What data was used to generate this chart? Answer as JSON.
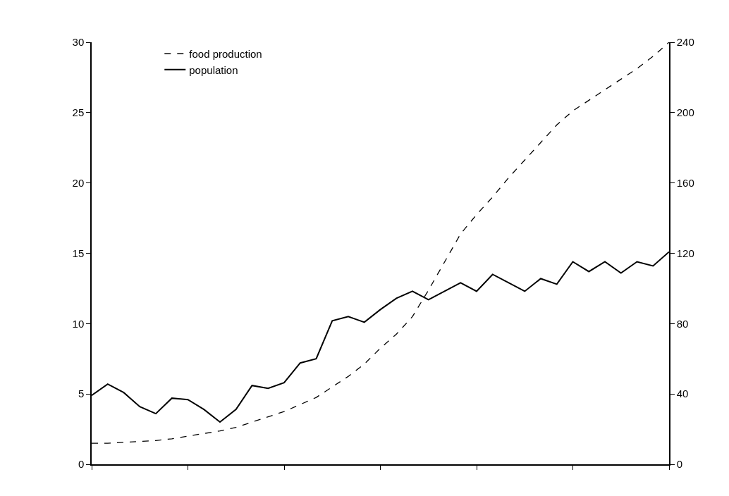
{
  "chart_data": {
    "type": "line",
    "categories": [
      null,
      null,
      null,
      null,
      null,
      null,
      null,
      null,
      null,
      null,
      null,
      null,
      null,
      null,
      null,
      null,
      null,
      null,
      null,
      null,
      null,
      null,
      null,
      null,
      null,
      null,
      null,
      null,
      null,
      null,
      null,
      null,
      null,
      null,
      null,
      null,
      null
    ],
    "ylim": [
      0,
      30
    ],
    "yticks": [
      0,
      5,
      10,
      15,
      20,
      25,
      30
    ],
    "y2lim": [
      0,
      240
    ],
    "y2ticks": [
      0,
      40,
      80,
      120,
      160,
      200,
      240
    ],
    "legend": "top",
    "series": [
      {
        "name": "food production",
        "color": "#000000",
        "line_style": "dashed",
        "axis": "y2",
        "values": [
          12,
          12,
          12.5,
          13,
          13.5,
          14.5,
          16,
          17.5,
          19,
          21,
          24,
          27,
          30,
          34,
          38,
          44,
          50,
          57,
          66,
          74,
          84,
          99,
          115,
          131,
          142,
          152,
          163,
          173,
          183,
          193,
          201,
          207,
          213,
          219,
          225,
          232,
          240
        ]
      },
      {
        "name": "population",
        "color": "#000000",
        "line_style": "solid",
        "axis": "y",
        "values": [
          4.9,
          5.7,
          5.1,
          4.1,
          3.6,
          4.7,
          4.6,
          3.9,
          3.0,
          3.9,
          5.6,
          5.4,
          5.8,
          7.2,
          7.5,
          10.2,
          10.5,
          10.1,
          11.0,
          11.8,
          12.3,
          11.7,
          12.3,
          12.9,
          12.3,
          13.5,
          12.9,
          12.3,
          13.2,
          12.8,
          14.4,
          13.7,
          14.4,
          13.6,
          14.4,
          14.1,
          15.1
        ]
      }
    ]
  }
}
